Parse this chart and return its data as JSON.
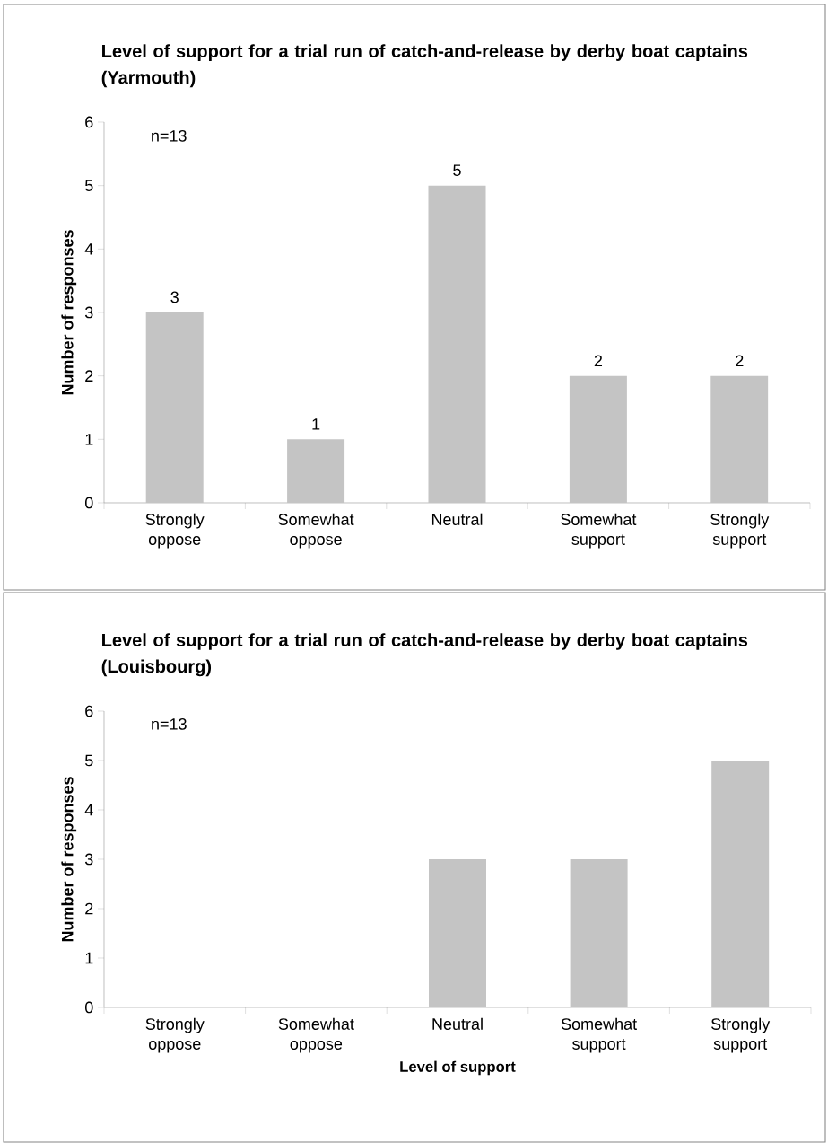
{
  "chart_data": [
    {
      "type": "bar",
      "title": "Level of support for a trial run of catch-and-release by derby boat captains (Yarmouth)",
      "ylabel": "Number of responses",
      "categories": [
        "Strongly oppose",
        "Somewhat oppose",
        "Neutral",
        "Somewhat support",
        "Strongly support"
      ],
      "values": [
        3,
        1,
        5,
        2,
        2
      ],
      "color": "#c4c4c4",
      "ylim": [
        0,
        6
      ],
      "yticks": [
        0,
        1,
        2,
        3,
        4,
        5,
        6
      ],
      "data_labels": true,
      "grid": false,
      "annotations": [
        "n=13"
      ]
    },
    {
      "type": "bar",
      "title": "Level of support for a trial run of catch-and-release by derby boat captains (Louisbourg)",
      "ylabel": "Number of responses",
      "xlabel": "Level of support",
      "categories": [
        "Strongly oppose",
        "Somewhat oppose",
        "Neutral",
        "Somewhat support",
        "Strongly support"
      ],
      "values": [
        0,
        0,
        3,
        3,
        5
      ],
      "color": "#c4c4c4",
      "ylim": [
        0,
        6
      ],
      "yticks": [
        0,
        1,
        2,
        3,
        4,
        5,
        6
      ],
      "grid": false,
      "annotations": [
        "n=13"
      ]
    }
  ]
}
